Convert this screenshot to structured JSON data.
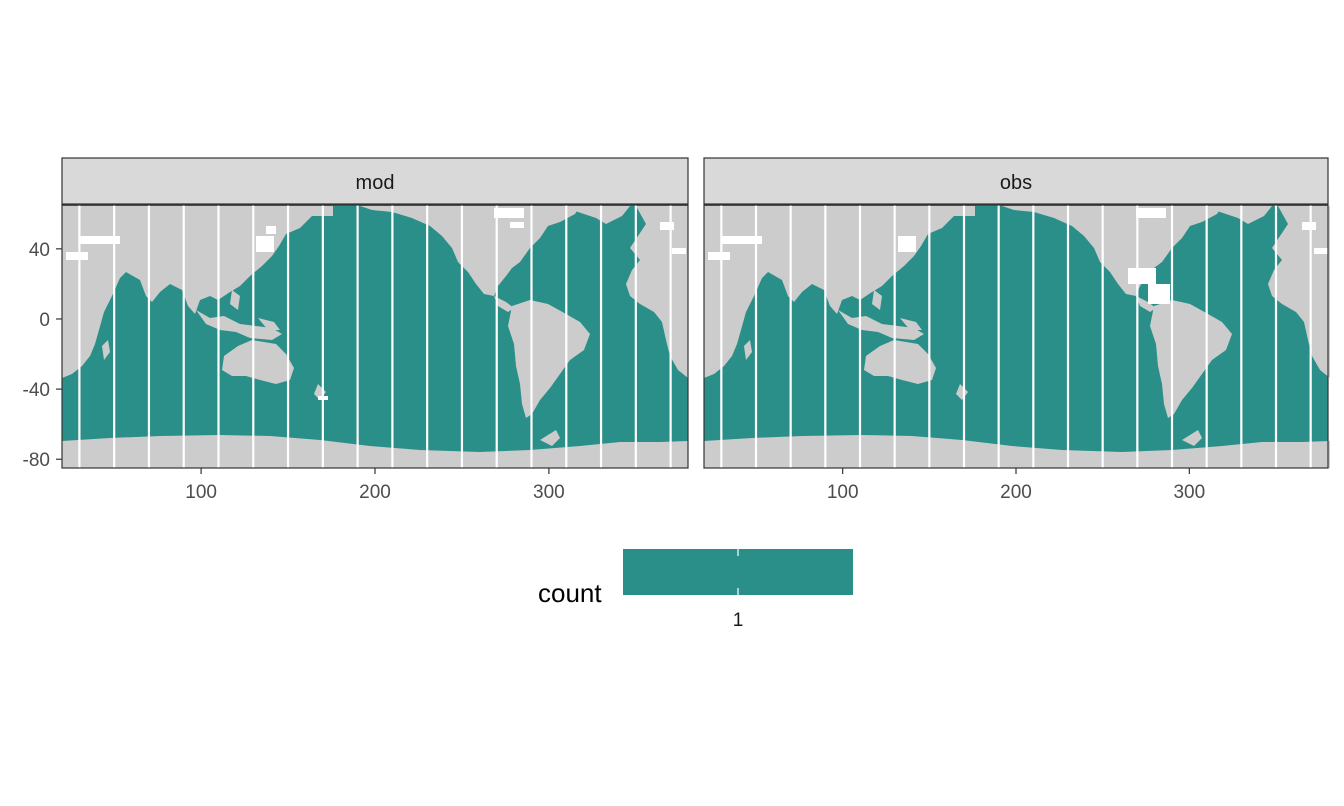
{
  "panels": [
    {
      "strip": "mod"
    },
    {
      "strip": "obs"
    }
  ],
  "chart_data": {
    "type": "heatmap",
    "facets": [
      "mod",
      "obs"
    ],
    "x_ticks": [
      100,
      200,
      300
    ],
    "y_ticks": [
      40,
      0,
      -40,
      -80
    ],
    "xlim": [
      20,
      380
    ],
    "ylim": [
      -85,
      65
    ],
    "fill": {
      "ocean_count": 1,
      "colors": {
        "ocean": "#2a8f89",
        "land": "#cccccc",
        "missing": "#ffffff",
        "transect_lines": "#ffffff"
      }
    },
    "transect_longitudes": [
      30,
      50,
      70,
      90,
      110,
      130,
      150,
      170,
      190,
      210,
      230,
      250,
      270,
      290,
      310,
      330,
      350,
      370
    ],
    "legend": {
      "title": "count",
      "labels": [
        "1"
      ],
      "position": "bottom"
    }
  }
}
